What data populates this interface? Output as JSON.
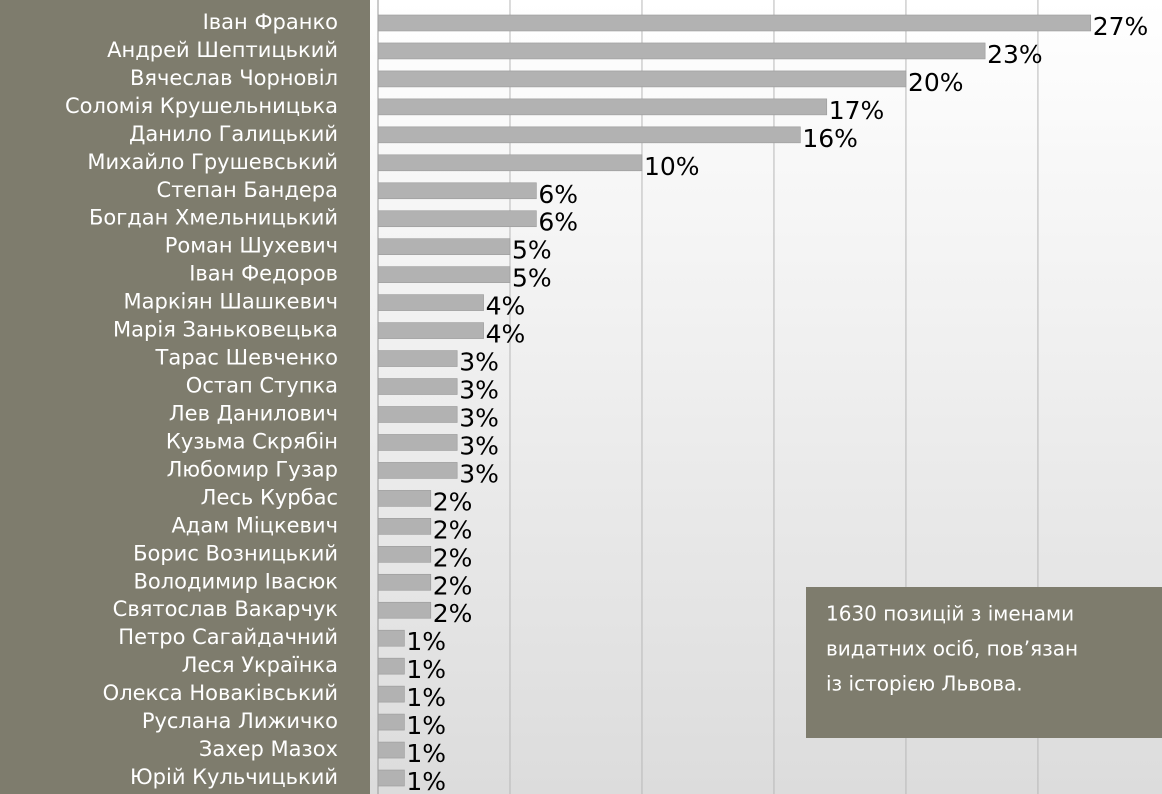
{
  "chart_data": {
    "type": "barh",
    "categories": [
      "Іван Франко",
      "Андрей Шептицький",
      "Вячеслав Чорновіл",
      "Соломія Крушельницька",
      "Данило Галицький",
      "Михайло Грушевський",
      "Степан Бандера",
      "Богдан Хмельницький",
      "Роман Шухевич",
      "Іван Федоров",
      "Маркіян Шашкевич",
      "Марія Заньковецька",
      "Тарас Шевченко",
      "Остап Ступка",
      "Лев Данилович",
      "Кузьма Скрябін",
      "Любомир Гузар",
      "Лесь Курбас",
      "Адам Міцкевич",
      "Борис Возницький",
      "Володимир Івасюк",
      "Святослав Вакарчук",
      "Петро Сагайдачний",
      "Леся Українка",
      "Олекса Новаківський",
      "Руслана Лижичко",
      "Захер Мазох",
      "Юрій Кульчицький"
    ],
    "values": [
      27,
      23,
      20,
      17,
      16,
      10,
      6,
      6,
      5,
      5,
      4,
      4,
      3,
      3,
      3,
      3,
      3,
      2,
      2,
      2,
      2,
      2,
      1,
      1,
      1,
      1,
      1,
      1
    ],
    "value_labels": [
      "27%",
      "23%",
      "20%",
      "17%",
      "16%",
      "10%",
      "6%",
      "6%",
      "5%",
      "5%",
      "4%",
      "4%",
      "3%",
      "3%",
      "3%",
      "3%",
      "3%",
      "2%",
      "2%",
      "2%",
      "2%",
      "2%",
      "1%",
      "1%",
      "1%",
      "1%",
      "1%",
      "1%"
    ],
    "color": "#b2b2b2",
    "xlim": [
      0,
      29.7
    ],
    "xticks": [
      0,
      5,
      10,
      15,
      20,
      25
    ],
    "grid": true,
    "annotation": [
      "1630 позицій з іменами",
      "видатних осіб, пов’язан",
      "із історією Львова."
    ]
  }
}
